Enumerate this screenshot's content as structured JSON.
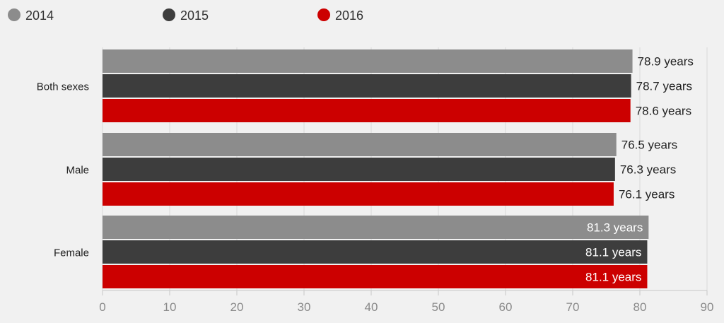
{
  "chart_data": {
    "type": "bar",
    "orientation": "horizontal",
    "categories": [
      "Both sexes",
      "Male",
      "Female"
    ],
    "series": [
      {
        "name": "2014",
        "color": "#8c8c8c",
        "values": [
          78.9,
          76.5,
          81.3
        ],
        "labels": [
          "78.9 years",
          "76.5 years",
          "81.3 years"
        ]
      },
      {
        "name": "2015",
        "color": "#3d3d3d",
        "values": [
          78.7,
          76.3,
          81.1
        ],
        "labels": [
          "78.7 years",
          "76.3 years",
          "81.1 years"
        ]
      },
      {
        "name": "2016",
        "color": "#cc0000",
        "values": [
          78.6,
          76.1,
          81.1
        ],
        "labels": [
          "78.6 years",
          "76.1 years",
          "81.1 years"
        ]
      }
    ],
    "xlim": [
      0,
      90
    ],
    "xticks": [
      "0",
      "10",
      "20",
      "30",
      "40",
      "50",
      "60",
      "70",
      "80",
      "90"
    ],
    "grid": "vertical",
    "legend_position": "top"
  }
}
